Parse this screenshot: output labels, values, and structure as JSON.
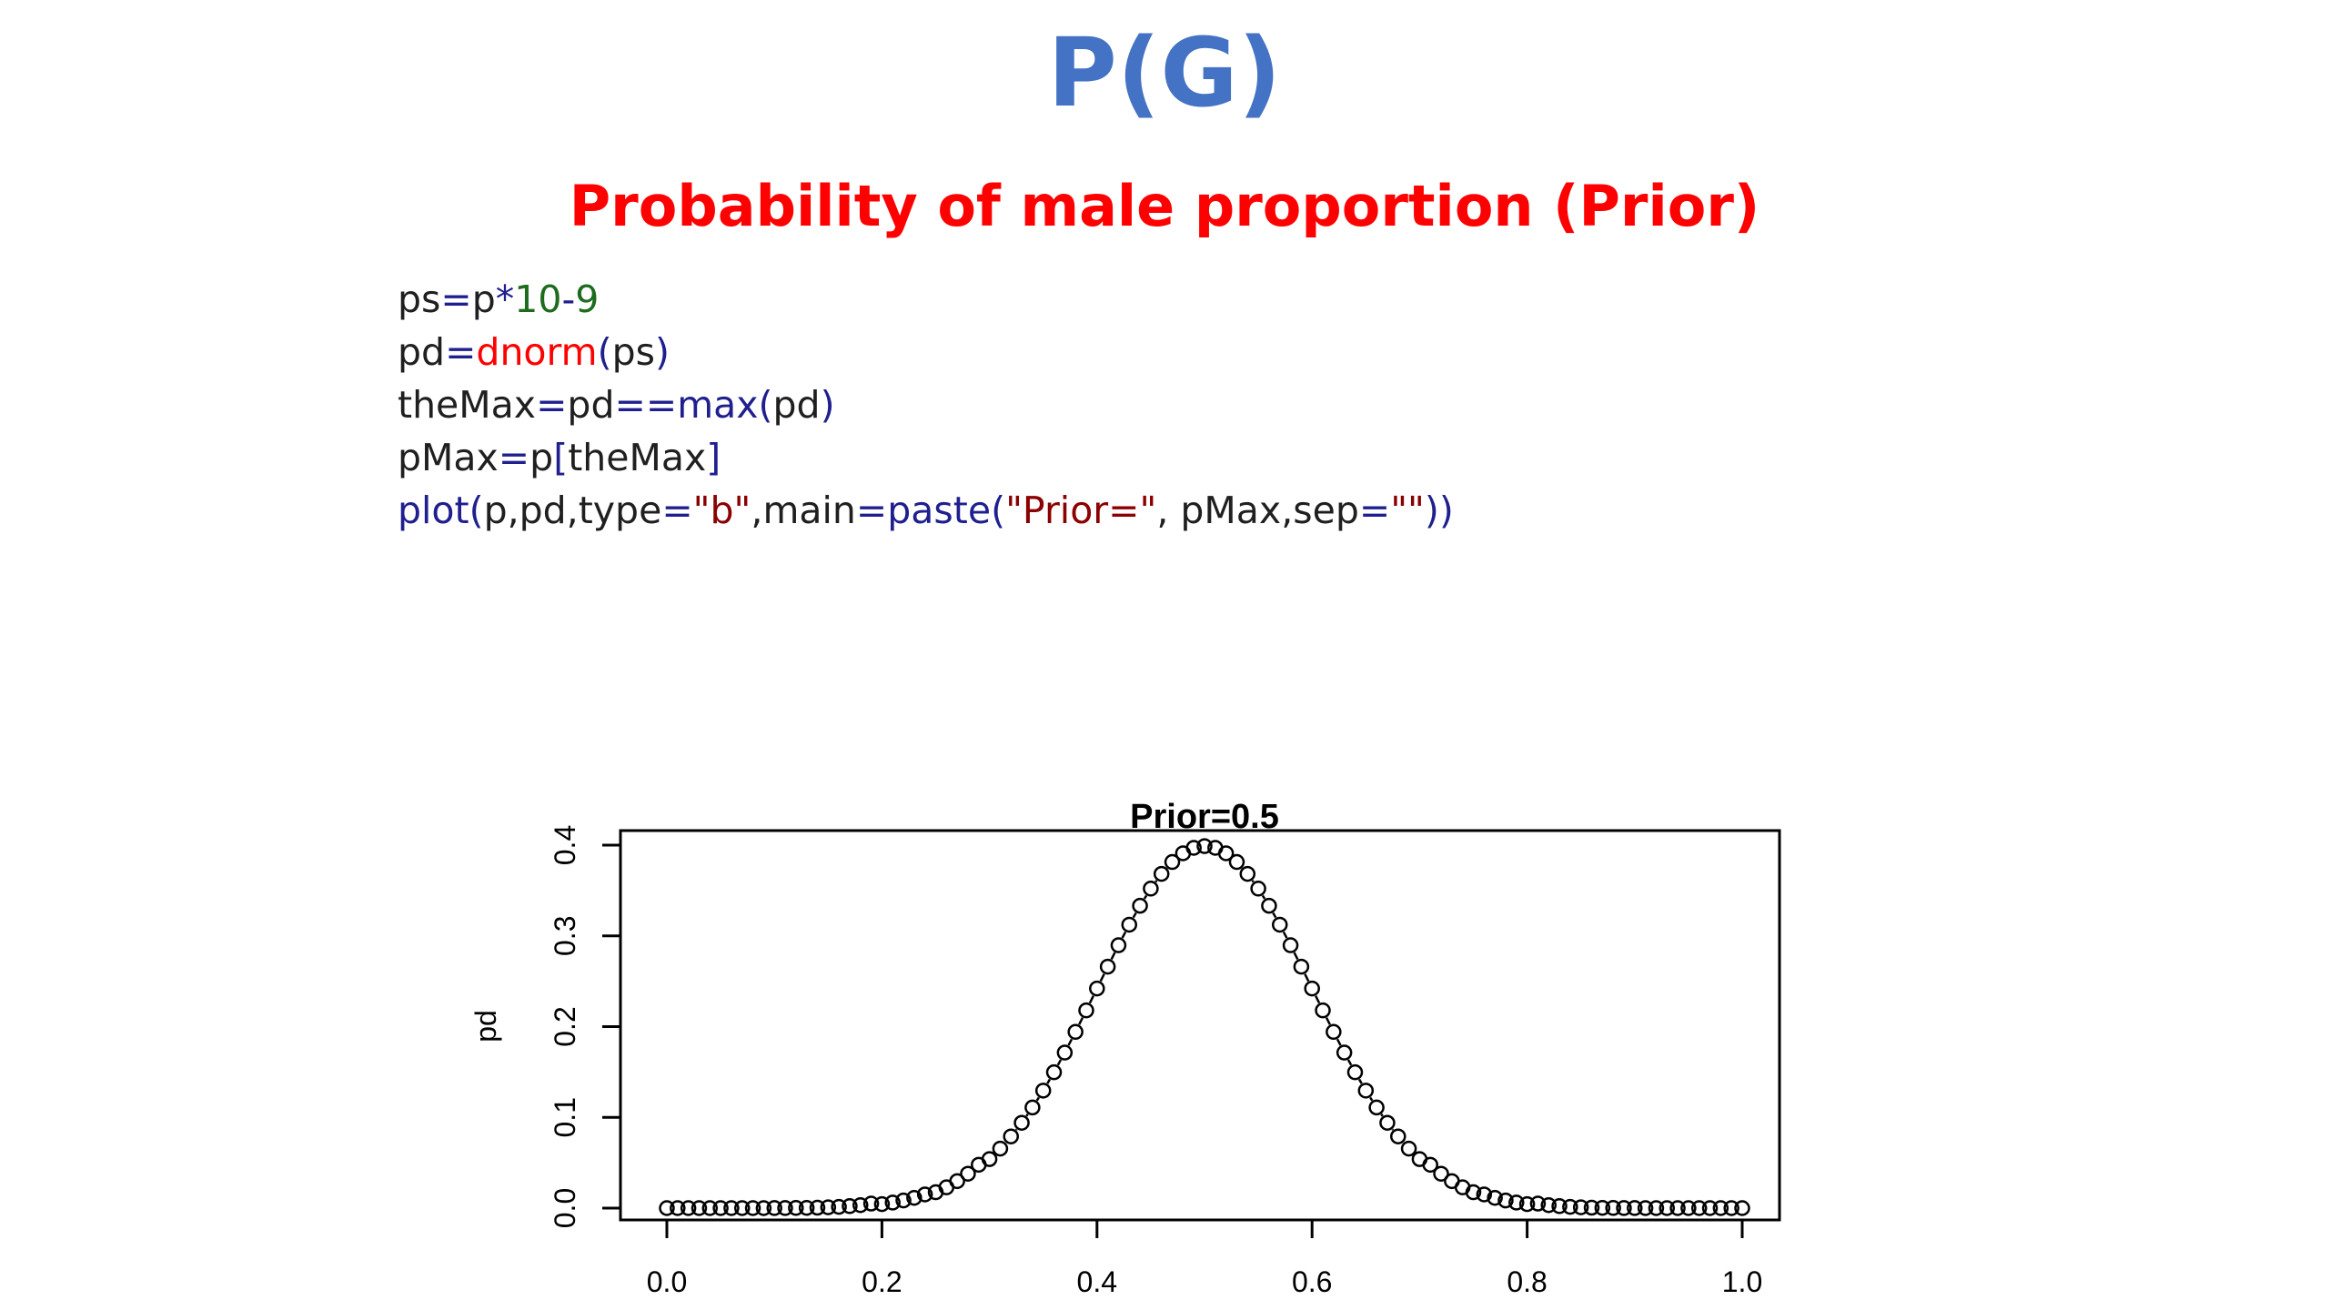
{
  "slide": {
    "title": "P(G)",
    "subtitle": "Probability of male proportion (Prior)"
  },
  "code": {
    "lines": [
      [
        {
          "t": "ps",
          "k": "plain"
        },
        {
          "t": "=",
          "k": "op"
        },
        {
          "t": "p",
          "k": "plain"
        },
        {
          "t": "*",
          "k": "op"
        },
        {
          "t": "10",
          "k": "num"
        },
        {
          "t": "-",
          "k": "op"
        },
        {
          "t": "9",
          "k": "num"
        }
      ],
      [
        {
          "t": "pd",
          "k": "plain"
        },
        {
          "t": "=",
          "k": "op"
        },
        {
          "t": "dnorm",
          "k": "fn-red"
        },
        {
          "t": "(",
          "k": "op"
        },
        {
          "t": "ps",
          "k": "plain"
        },
        {
          "t": ")",
          "k": "op"
        }
      ],
      [
        {
          "t": "theMax",
          "k": "plain"
        },
        {
          "t": "=",
          "k": "op"
        },
        {
          "t": "pd",
          "k": "plain"
        },
        {
          "t": "==",
          "k": "op"
        },
        {
          "t": "max",
          "k": "fn-blue"
        },
        {
          "t": "(",
          "k": "op"
        },
        {
          "t": "pd",
          "k": "plain"
        },
        {
          "t": ")",
          "k": "op"
        }
      ],
      [
        {
          "t": "pMax",
          "k": "plain"
        },
        {
          "t": "=",
          "k": "op"
        },
        {
          "t": "p",
          "k": "plain"
        },
        {
          "t": "[",
          "k": "op"
        },
        {
          "t": "theMax",
          "k": "plain"
        },
        {
          "t": "]",
          "k": "op"
        }
      ],
      [
        {
          "t": "plot",
          "k": "fn-blue"
        },
        {
          "t": "(",
          "k": "op"
        },
        {
          "t": "p,pd,type",
          "k": "plain"
        },
        {
          "t": "=",
          "k": "op"
        },
        {
          "t": "\"b\"",
          "k": "str"
        },
        {
          "t": ",main",
          "k": "plain"
        },
        {
          "t": "=",
          "k": "op"
        },
        {
          "t": "paste",
          "k": "fn-blue"
        },
        {
          "t": "(",
          "k": "op"
        },
        {
          "t": "\"Prior=\"",
          "k": "str"
        },
        {
          "t": ", pMax,sep",
          "k": "plain"
        },
        {
          "t": "=",
          "k": "op"
        },
        {
          "t": "\"\"",
          "k": "str"
        },
        {
          "t": "))",
          "k": "op"
        }
      ]
    ]
  },
  "chart_data": {
    "type": "scatter",
    "title": "Prior=0.5",
    "xlabel": "",
    "ylabel": "pd",
    "xlim": [
      0,
      1
    ],
    "ylim": [
      0,
      0.4
    ],
    "x_ticks": [
      "0.0",
      "0.2",
      "0.4",
      "0.6",
      "0.8",
      "1.0"
    ],
    "y_ticks": [
      "0.0",
      "0.1",
      "0.2",
      "0.3",
      "0.4"
    ],
    "grid": false,
    "legend": "none",
    "series": [
      {
        "x": [
          0.0,
          0.01,
          0.02,
          0.03,
          0.04,
          0.05,
          0.06,
          0.07,
          0.08,
          0.09,
          0.1,
          0.11,
          0.12,
          0.13,
          0.14,
          0.15,
          0.16,
          0.17,
          0.18,
          0.19,
          0.2,
          0.21,
          0.22,
          0.23,
          0.24,
          0.25,
          0.26,
          0.27,
          0.28,
          0.29,
          0.3,
          0.31,
          0.32,
          0.33,
          0.34,
          0.35,
          0.36,
          0.37,
          0.38,
          0.39,
          0.4,
          0.41,
          0.42,
          0.43,
          0.44,
          0.45,
          0.46,
          0.47,
          0.48,
          0.49,
          0.5,
          0.51,
          0.52,
          0.53,
          0.54,
          0.55,
          0.56,
          0.57,
          0.58,
          0.59,
          0.6,
          0.61,
          0.62,
          0.63,
          0.64,
          0.65,
          0.66,
          0.67,
          0.68,
          0.69,
          0.7,
          0.71,
          0.72,
          0.73,
          0.74,
          0.75,
          0.76,
          0.77,
          0.78,
          0.79,
          0.8,
          0.81,
          0.82,
          0.83,
          0.84,
          0.85,
          0.86,
          0.87,
          0.88,
          0.89,
          0.9,
          0.91,
          0.92,
          0.93,
          0.94,
          0.95,
          0.96,
          0.97,
          0.98,
          0.99,
          1.0
        ],
        "y": [
          0.0,
          0.0,
          0.0,
          0.0,
          0.0,
          0.0,
          0.0,
          0.0,
          0.0,
          0.0,
          0.0001,
          0.0001,
          0.0002,
          0.0003,
          0.0005,
          0.0009,
          0.0014,
          0.0022,
          0.0033,
          0.005,
          0.0044,
          0.0061,
          0.0084,
          0.0113,
          0.0151,
          0.0175,
          0.0229,
          0.0297,
          0.0379,
          0.0478,
          0.054,
          0.0656,
          0.079,
          0.094,
          0.1109,
          0.1295,
          0.1497,
          0.1714,
          0.1942,
          0.2179,
          0.242,
          0.2661,
          0.2897,
          0.3123,
          0.3332,
          0.3521,
          0.3683,
          0.3814,
          0.391,
          0.397,
          0.3989,
          0.397,
          0.391,
          0.3814,
          0.3683,
          0.3521,
          0.3332,
          0.3123,
          0.2897,
          0.2661,
          0.242,
          0.2179,
          0.1942,
          0.1714,
          0.1497,
          0.1295,
          0.1109,
          0.094,
          0.079,
          0.0656,
          0.054,
          0.0478,
          0.0379,
          0.0297,
          0.0229,
          0.0175,
          0.0151,
          0.0113,
          0.0084,
          0.0061,
          0.0044,
          0.005,
          0.0033,
          0.0022,
          0.0014,
          0.0009,
          0.0005,
          0.0003,
          0.0002,
          0.0001,
          0.0001,
          0.0,
          0.0,
          0.0,
          0.0,
          0.0,
          0.0,
          0.0,
          0.0,
          0.0,
          0.0
        ]
      }
    ]
  }
}
